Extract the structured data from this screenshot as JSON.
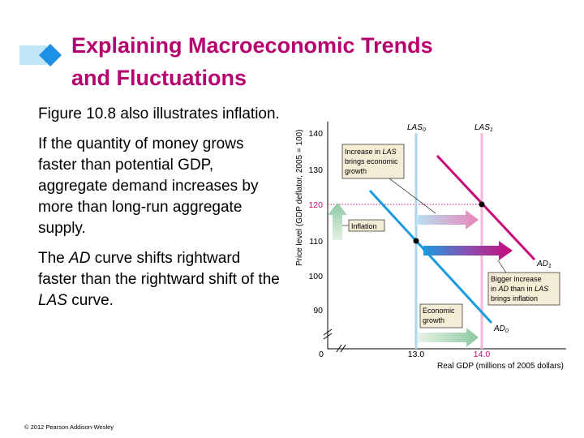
{
  "slide": {
    "title_line1": "Explaining Macroeconomic Trends",
    "title_line2": "and Fluctuations",
    "p1": "Figure 10.8 also illustrates inflation.",
    "p2": "If the quantity of money grows faster than potential GDP, aggregate demand increases by more than long-run aggregate supply.",
    "p3_a": "The ",
    "p3_ad": "AD",
    "p3_b": " curve shifts rightward faster than the rightward shift of the ",
    "p3_las": "LAS",
    "p3_c": " curve.",
    "footer": "© 2012 Pearson Addison-Wesley",
    "accent_color": "#b5006e"
  },
  "chart_data": {
    "type": "line",
    "ylabel": "Price level (GDP deflator, 2005 = 100)",
    "xlabel": "Real GDP (millions of 2005 dollars)",
    "yticks": [
      "140",
      "130",
      "120",
      "110",
      "100",
      "90"
    ],
    "y_highlight": "120",
    "origin_label": "0",
    "x_tick_1": "13.0",
    "x_tick_2": "14.0",
    "curves": {
      "las0_base": "LAS",
      "las0_sub": "0",
      "las1_base": "LAS",
      "las1_sub": "1",
      "ad0_base": "AD",
      "ad0_sub": "0",
      "ad1_base": "AD",
      "ad1_sub": "1"
    },
    "equilibria": [
      {
        "x": 13.0,
        "y": 110
      },
      {
        "x": 14.0,
        "y": 120
      }
    ],
    "annotations": {
      "las_box_l1": "Increase in ",
      "las_box_l1_i": "LAS",
      "las_box_l2": "brings economic",
      "las_box_l3": "growth",
      "inflation": "Inflation",
      "bigger_l1": "Bigger increase",
      "bigger_l2_a": "in ",
      "bigger_l2_ad": "AD",
      "bigger_l2_b": " than in ",
      "bigger_l2_las": "LAS",
      "bigger_l3": "brings inflation",
      "growth_l1": "Economic",
      "growth_l2": "growth"
    }
  }
}
